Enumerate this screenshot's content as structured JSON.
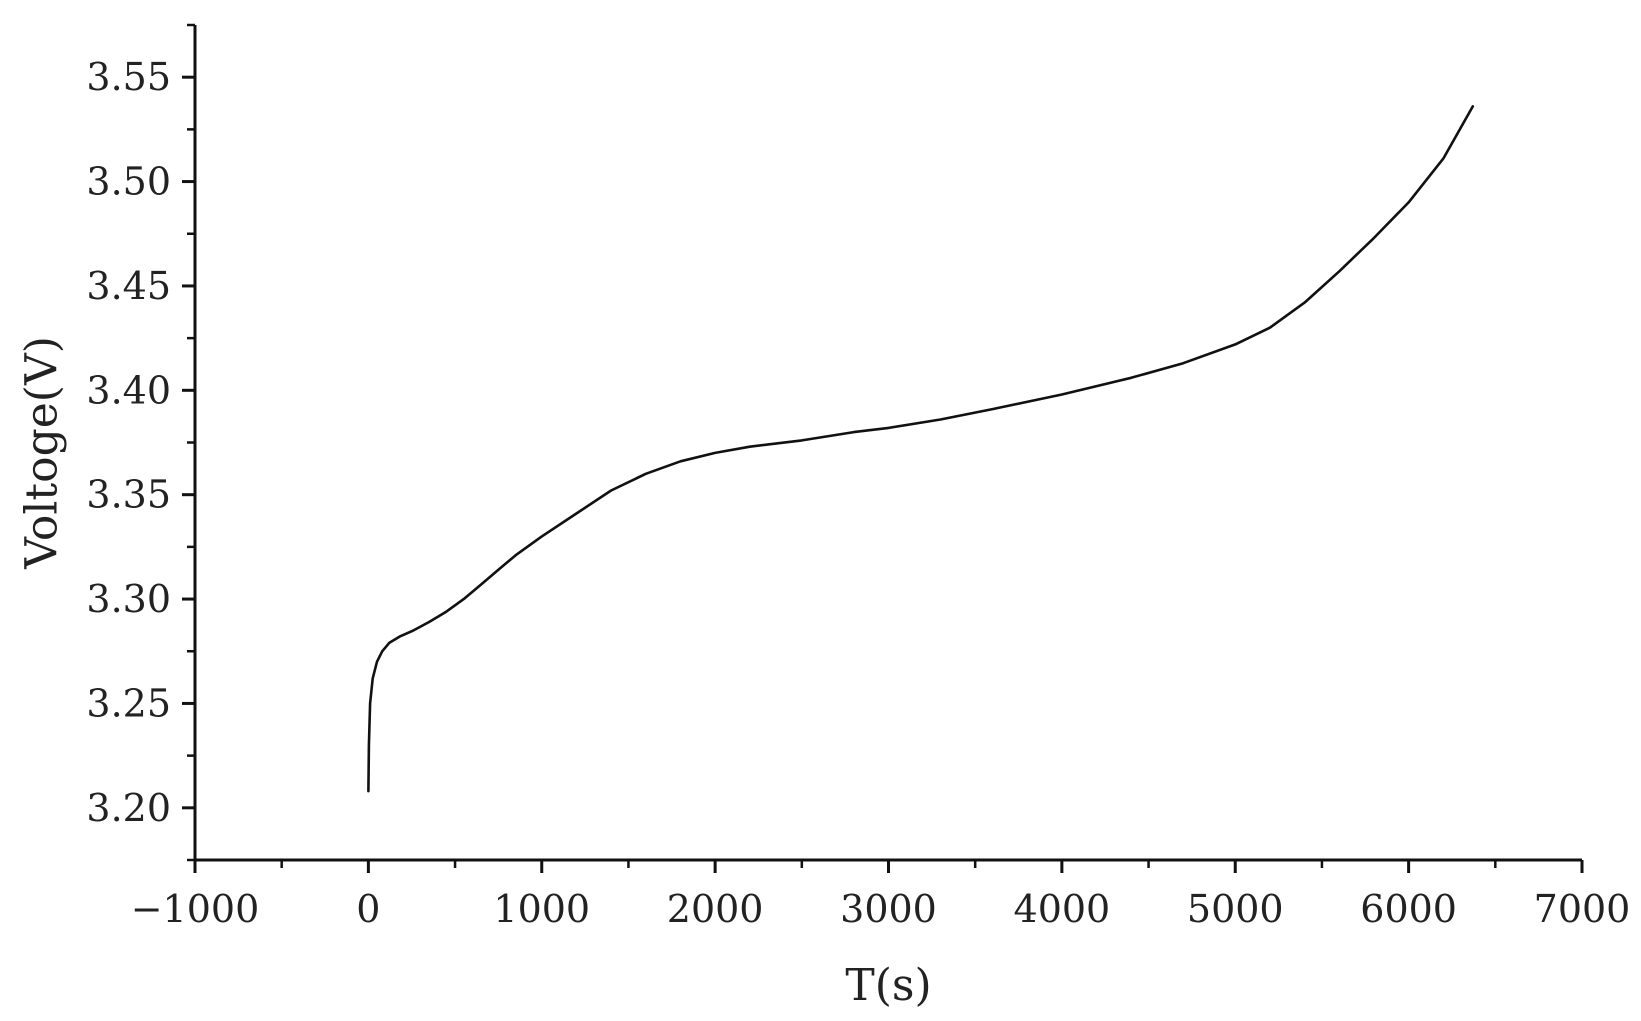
{
  "chart_data": {
    "type": "line",
    "title": "",
    "xlabel": "T(s)",
    "ylabel": "Voltoge(V)",
    "xlim": [
      -1000,
      7000
    ],
    "ylim": [
      3.175,
      3.575
    ],
    "x_ticks": [
      -1000,
      0,
      1000,
      2000,
      3000,
      4000,
      5000,
      6000,
      7000
    ],
    "x_tick_labels": [
      "−1000",
      "0",
      "1000",
      "2000",
      "3000",
      "4000",
      "5000",
      "6000",
      "7000"
    ],
    "y_ticks": [
      3.2,
      3.25,
      3.3,
      3.35,
      3.4,
      3.45,
      3.5,
      3.55
    ],
    "y_tick_labels": [
      "3.20",
      "3.25",
      "3.30",
      "3.35",
      "3.40",
      "3.45",
      "3.50",
      "3.55"
    ],
    "grid": false,
    "line_color": "#111111",
    "series": [
      {
        "x": [
          0,
          3,
          10,
          25,
          50,
          80,
          120,
          180,
          260,
          350,
          450,
          550,
          650,
          750,
          850,
          1000,
          1200,
          1400,
          1600,
          1800,
          2000,
          2200,
          2500,
          2800,
          3000,
          3300,
          3600,
          4000,
          4400,
          4700,
          5000,
          5200,
          5400,
          5600,
          5800,
          6000,
          6200,
          6370
        ],
        "y": [
          3.208,
          3.23,
          3.25,
          3.262,
          3.27,
          3.275,
          3.279,
          3.282,
          3.285,
          3.289,
          3.294,
          3.3,
          3.307,
          3.314,
          3.321,
          3.33,
          3.341,
          3.352,
          3.36,
          3.366,
          3.37,
          3.373,
          3.376,
          3.38,
          3.382,
          3.386,
          3.391,
          3.398,
          3.406,
          3.413,
          3.422,
          3.43,
          3.442,
          3.457,
          3.473,
          3.49,
          3.511,
          3.536
        ]
      }
    ]
  }
}
